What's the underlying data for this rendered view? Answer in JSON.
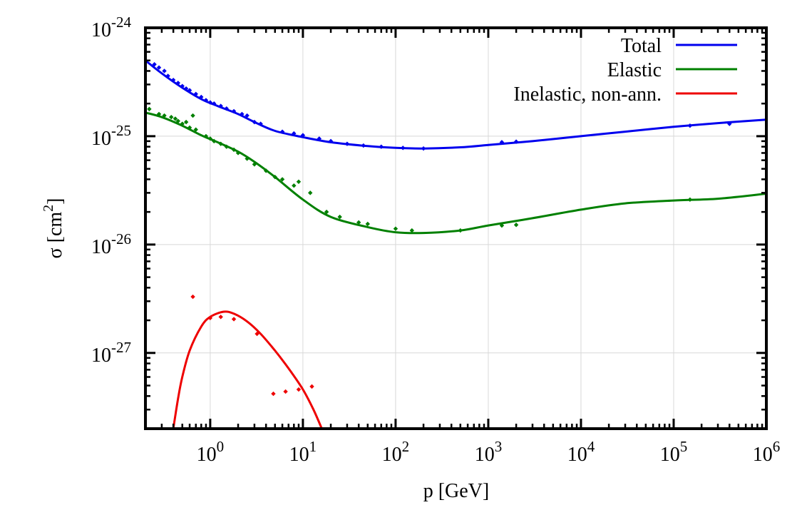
{
  "chart_data": {
    "type": "scatter",
    "title": "",
    "xlabel": "p [GeV]",
    "ylabel_base": "σ [cm",
    "ylabel_sup": "2",
    "ylabel_close": "]",
    "x_scale": "log",
    "y_scale": "log",
    "xlim": [
      0.2,
      1000000
    ],
    "ylim": [
      2e-28,
      1e-24
    ],
    "grid": true,
    "legend_position": "top-right",
    "x_ticks": [
      {
        "value": 1,
        "base": "10",
        "exp": "0"
      },
      {
        "value": 10,
        "base": "10",
        "exp": "1"
      },
      {
        "value": 100,
        "base": "10",
        "exp": "2"
      },
      {
        "value": 1000,
        "base": "10",
        "exp": "3"
      },
      {
        "value": 10000,
        "base": "10",
        "exp": "4"
      },
      {
        "value": 100000,
        "base": "10",
        "exp": "5"
      },
      {
        "value": 1000000,
        "base": "10",
        "exp": "6"
      }
    ],
    "y_ticks": [
      {
        "value": 1e-24,
        "base": "10",
        "exp": "-24"
      },
      {
        "value": 1e-25,
        "base": "10",
        "exp": "-25"
      },
      {
        "value": 1e-26,
        "base": "10",
        "exp": "-26"
      },
      {
        "value": 1e-27,
        "base": "10",
        "exp": "-27"
      }
    ],
    "series": [
      {
        "name": "Total",
        "color": "#0000ee",
        "curve": [
          [
            0.2,
            5e-25
          ],
          [
            0.3,
            3.8e-25
          ],
          [
            0.5,
            2.8e-25
          ],
          [
            0.8,
            2.2e-25
          ],
          [
            1.2,
            1.9e-25
          ],
          [
            2,
            1.6e-25
          ],
          [
            3,
            1.35e-25
          ],
          [
            5,
            1.12e-25
          ],
          [
            10,
            9.8e-26
          ],
          [
            20,
            8.8e-26
          ],
          [
            50,
            8.1e-26
          ],
          [
            100,
            7.8e-26
          ],
          [
            200,
            7.7e-26
          ],
          [
            500,
            7.9e-26
          ],
          [
            1000,
            8.3e-26
          ],
          [
            3000,
            9e-26
          ],
          [
            10000,
            1e-25
          ],
          [
            30000,
            1.1e-25
          ],
          [
            100000,
            1.22e-25
          ],
          [
            300000,
            1.32e-25
          ],
          [
            1000000,
            1.42e-25
          ]
        ],
        "points": [
          [
            0.25,
            4.6e-25
          ],
          [
            0.28,
            4.3e-25
          ],
          [
            0.32,
            4e-25
          ],
          [
            0.35,
            3.6e-25
          ],
          [
            0.4,
            3.3e-25
          ],
          [
            0.45,
            3.1e-25
          ],
          [
            0.5,
            2.9e-25
          ],
          [
            0.55,
            2.75e-25
          ],
          [
            0.6,
            2.65e-25
          ],
          [
            0.7,
            2.45e-25
          ],
          [
            0.8,
            2.3e-25
          ],
          [
            0.9,
            2.15e-25
          ],
          [
            1.0,
            2.05e-25
          ],
          [
            1.1,
            2e-25
          ],
          [
            1.3,
            1.9e-25
          ],
          [
            1.5,
            1.8e-25
          ],
          [
            1.8,
            1.7e-25
          ],
          [
            2.2,
            1.6e-25
          ],
          [
            2.5,
            1.55e-25
          ],
          [
            3.0,
            1.35e-25
          ],
          [
            3.5,
            1.3e-25
          ],
          [
            6,
            1.1e-25
          ],
          [
            8,
            1.06e-25
          ],
          [
            10,
            1.02e-25
          ],
          [
            15,
            9.5e-26
          ],
          [
            20,
            9e-26
          ],
          [
            30,
            8.5e-26
          ],
          [
            45,
            8.2e-26
          ],
          [
            70,
            8e-26
          ],
          [
            120,
            7.8e-26
          ],
          [
            200,
            7.7e-26
          ],
          [
            1400,
            8.8e-26
          ],
          [
            2000,
            8.9e-26
          ],
          [
            150000,
            1.25e-25
          ],
          [
            400000,
            1.3e-25
          ]
        ]
      },
      {
        "name": "Elastic",
        "color": "#008000",
        "curve": [
          [
            0.2,
            1.65e-25
          ],
          [
            0.3,
            1.5e-25
          ],
          [
            0.5,
            1.25e-25
          ],
          [
            0.8,
            1.02e-25
          ],
          [
            1.2,
            8.8e-26
          ],
          [
            2,
            7.2e-26
          ],
          [
            3,
            5.8e-26
          ],
          [
            5,
            4.2e-26
          ],
          [
            10,
            2.6e-26
          ],
          [
            20,
            1.8e-26
          ],
          [
            50,
            1.45e-26
          ],
          [
            100,
            1.3e-26
          ],
          [
            200,
            1.28e-26
          ],
          [
            500,
            1.35e-26
          ],
          [
            1000,
            1.5e-26
          ],
          [
            3000,
            1.75e-26
          ],
          [
            10000,
            2.1e-26
          ],
          [
            30000,
            2.4e-26
          ],
          [
            100000,
            2.55e-26
          ],
          [
            300000,
            2.65e-26
          ],
          [
            1000000,
            2.95e-26
          ]
        ],
        "points": [
          [
            0.22,
            1.78e-25
          ],
          [
            0.28,
            1.6e-25
          ],
          [
            0.32,
            1.55e-25
          ],
          [
            0.38,
            1.5e-25
          ],
          [
            0.42,
            1.45e-25
          ],
          [
            0.45,
            1.38e-25
          ],
          [
            0.5,
            1.3e-25
          ],
          [
            0.55,
            1.35e-25
          ],
          [
            0.6,
            1.2e-25
          ],
          [
            0.65,
            1.55e-25
          ],
          [
            0.7,
            1.15e-25
          ],
          [
            0.9,
            1e-25
          ],
          [
            1.0,
            9.5e-26
          ],
          [
            1.1,
            9e-26
          ],
          [
            1.3,
            8.5e-26
          ],
          [
            1.5,
            8e-26
          ],
          [
            1.8,
            7.5e-26
          ],
          [
            2.0,
            7e-26
          ],
          [
            2.5,
            6.2e-26
          ],
          [
            3.0,
            5.5e-26
          ],
          [
            4.0,
            4.8e-26
          ],
          [
            5.0,
            4.2e-26
          ],
          [
            6.0,
            4e-26
          ],
          [
            8.0,
            3.5e-26
          ],
          [
            9.0,
            3.8e-26
          ],
          [
            12,
            3e-26
          ],
          [
            18,
            2e-26
          ],
          [
            25,
            1.8e-26
          ],
          [
            40,
            1.6e-26
          ],
          [
            50,
            1.55e-26
          ],
          [
            100,
            1.4e-26
          ],
          [
            150,
            1.35e-26
          ],
          [
            500,
            1.35e-26
          ],
          [
            1400,
            1.5e-26
          ],
          [
            2000,
            1.52e-26
          ],
          [
            150000,
            2.6e-26
          ]
        ]
      },
      {
        "name": "Inelastic, non-ann.",
        "color": "#ee0000",
        "curve": [
          [
            0.4,
            2e-28
          ],
          [
            0.45,
            3.8e-28
          ],
          [
            0.5,
            6e-28
          ],
          [
            0.6,
            1.05e-27
          ],
          [
            0.8,
            1.75e-27
          ],
          [
            1.0,
            2.15e-27
          ],
          [
            1.4,
            2.4e-27
          ],
          [
            1.8,
            2.3e-27
          ],
          [
            2.5,
            1.95e-27
          ],
          [
            3.5,
            1.5e-27
          ],
          [
            5,
            1.05e-27
          ],
          [
            7,
            7.2e-28
          ],
          [
            10,
            4.6e-28
          ],
          [
            13,
            3e-28
          ],
          [
            16,
            2e-28
          ]
        ],
        "points": [
          [
            0.65,
            3.3e-27
          ],
          [
            1.0,
            2.1e-27
          ],
          [
            1.3,
            2.15e-27
          ],
          [
            1.8,
            2.05e-27
          ],
          [
            3.2,
            1.5e-27
          ],
          [
            4.8,
            4.2e-28
          ],
          [
            6.5,
            4.4e-28
          ],
          [
            9,
            4.6e-28
          ],
          [
            12.5,
            4.9e-28
          ]
        ]
      }
    ]
  }
}
